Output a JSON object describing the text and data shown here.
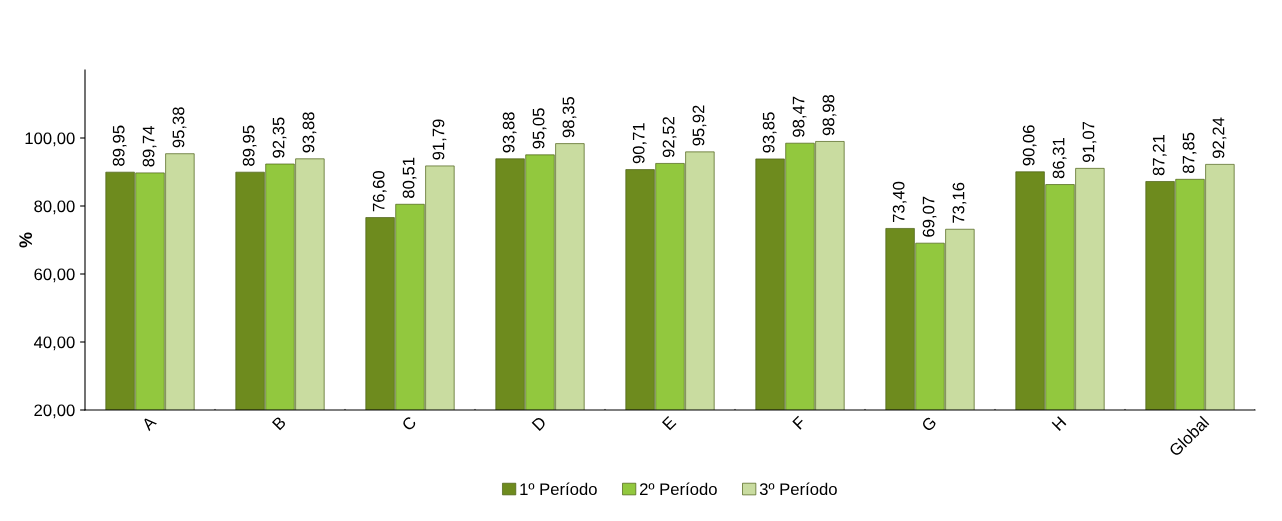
{
  "chart_data": {
    "type": "bar",
    "ylabel": "%",
    "categories": [
      "A",
      "B",
      "C",
      "D",
      "E",
      "F",
      "G",
      "H",
      "Global"
    ],
    "series": [
      {
        "name": "1º Período",
        "color": "#6e8b1e",
        "values": [
          89.95,
          89.95,
          76.6,
          93.88,
          90.71,
          93.85,
          73.4,
          90.06,
          87.21
        ],
        "value_labels": [
          "89,95",
          "89,95",
          "76,60",
          "93,88",
          "90,71",
          "93,85",
          "73,40",
          "90,06",
          "87,21"
        ]
      },
      {
        "name": "2º Período",
        "color": "#92c83e",
        "values": [
          89.74,
          92.35,
          80.51,
          95.05,
          92.52,
          98.47,
          69.07,
          86.31,
          87.85
        ],
        "value_labels": [
          "89,74",
          "92,35",
          "80,51",
          "95,05",
          "92,52",
          "98,47",
          "69,07",
          "86,31",
          "87,85"
        ]
      },
      {
        "name": "3º Período",
        "color": "#c9dca0",
        "values": [
          95.38,
          93.88,
          91.79,
          98.35,
          95.92,
          98.98,
          73.16,
          91.07,
          92.24
        ],
        "value_labels": [
          "95,38",
          "93,88",
          "91,79",
          "98,35",
          "95,92",
          "98,98",
          "73,16",
          "91,07",
          "92,24"
        ]
      }
    ],
    "ylim": [
      20,
      120
    ],
    "yticks": [
      {
        "value": 20,
        "label": "20,00"
      },
      {
        "value": 40,
        "label": "40,00"
      },
      {
        "value": 60,
        "label": "60,00"
      },
      {
        "value": 80,
        "label": "80,00"
      },
      {
        "value": 100,
        "label": "100,00"
      }
    ],
    "legend": "bottom",
    "grid": false
  }
}
